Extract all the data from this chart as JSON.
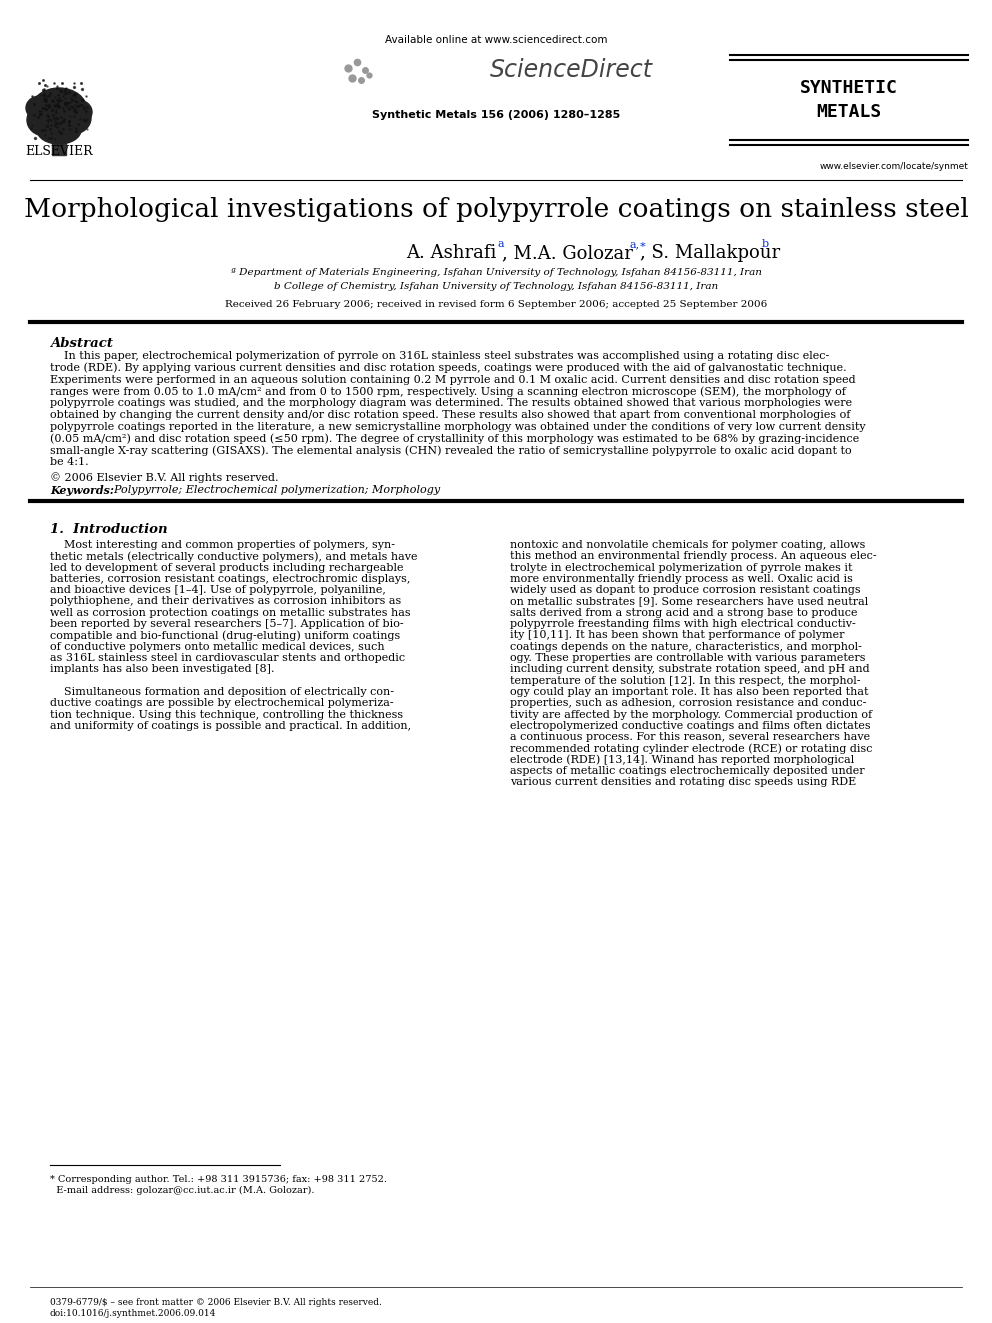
{
  "title": "Morphological investigations of polypyrrole coatings on stainless steel",
  "journal_info": "Synthetic Metals 156 (2006) 1280–1285",
  "available_online": "Available online at www.sciencedirect.com",
  "website": "www.elsevier.com/locate/synmet",
  "affil_a": "ª Department of Materials Engineering, Isfahan University of Technology, Isfahan 84156-83111, Iran",
  "affil_b": "b College of Chemistry, Isfahan University of Technology, Isfahan 84156-83111, Iran",
  "received": "Received 26 February 2006; received in revised form 6 September 2006; accepted 25 September 2006",
  "abstract_title": "Abstract",
  "copyright": "© 2006 Elsevier B.V. All rights reserved.",
  "keywords_label": "Keywords:",
  "keywords": "Polypyrrole; Electrochemical polymerization; Morphology",
  "section1_title": "1.  Introduction",
  "footnote_star": "* Corresponding author. Tel.: +98 311 3915736; fax: +98 311 2752.",
  "footnote_email": "  E-mail address: golozar@cc.iut.ac.ir (M.A. Golozar).",
  "footer_line1": "0379-6779/$ – see front matter © 2006 Elsevier B.V. All rights reserved.",
  "footer_line2": "doi:10.1016/j.synthmet.2006.09.014",
  "bg_color": "#ffffff",
  "text_color": "#000000",
  "blue_color": "#0033cc"
}
